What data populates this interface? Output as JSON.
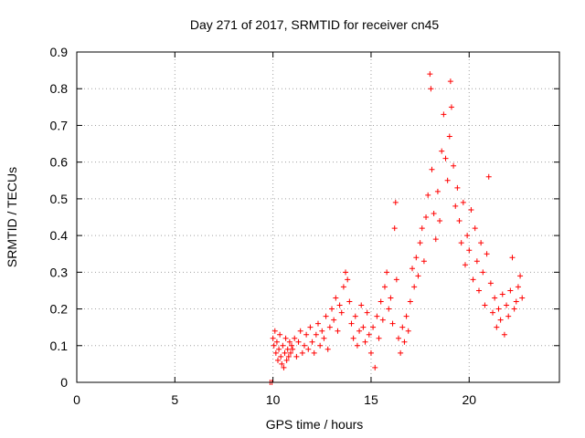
{
  "chart_data": {
    "type": "scatter",
    "title": "Day 271 of 2017, SRMTID for receiver cn45",
    "xlabel": "GPS time / hours",
    "ylabel": "SRMTID / TECUs",
    "xlim": [
      0,
      24.6
    ],
    "ylim": [
      0,
      0.9
    ],
    "x_ticks": [
      0,
      5,
      10,
      15,
      20
    ],
    "x_tick_labels": [
      "0",
      "5",
      "10",
      "15",
      "20"
    ],
    "y_ticks": [
      0,
      0.1,
      0.2,
      0.3,
      0.4,
      0.5,
      0.6,
      0.7,
      0.8,
      0.9
    ],
    "y_tick_labels": [
      "0",
      "0.1",
      "0.2",
      "0.3",
      "0.4",
      "0.5",
      "0.6",
      "0.7",
      "0.8",
      "0.9"
    ],
    "grid": true,
    "marker": "plus",
    "series": [
      {
        "name": "cn45",
        "color": "#ff0000",
        "points": [
          [
            9.85,
            0.0
          ],
          [
            9.95,
            0.0
          ],
          [
            10.0,
            0.12
          ],
          [
            10.05,
            0.1
          ],
          [
            10.1,
            0.14
          ],
          [
            10.15,
            0.08
          ],
          [
            10.2,
            0.11
          ],
          [
            10.25,
            0.06
          ],
          [
            10.3,
            0.09
          ],
          [
            10.35,
            0.13
          ],
          [
            10.4,
            0.07
          ],
          [
            10.45,
            0.05
          ],
          [
            10.5,
            0.1
          ],
          [
            10.55,
            0.04
          ],
          [
            10.6,
            0.08
          ],
          [
            10.65,
            0.12
          ],
          [
            10.7,
            0.06
          ],
          [
            10.75,
            0.09
          ],
          [
            10.8,
            0.07
          ],
          [
            10.85,
            0.11
          ],
          [
            10.9,
            0.08
          ],
          [
            10.95,
            0.1
          ],
          [
            11.0,
            0.09
          ],
          [
            11.1,
            0.12
          ],
          [
            11.2,
            0.07
          ],
          [
            11.3,
            0.11
          ],
          [
            11.4,
            0.14
          ],
          [
            11.5,
            0.08
          ],
          [
            11.6,
            0.1
          ],
          [
            11.7,
            0.13
          ],
          [
            11.8,
            0.09
          ],
          [
            11.9,
            0.15
          ],
          [
            12.0,
            0.11
          ],
          [
            12.1,
            0.08
          ],
          [
            12.2,
            0.13
          ],
          [
            12.3,
            0.16
          ],
          [
            12.4,
            0.1
          ],
          [
            12.5,
            0.14
          ],
          [
            12.6,
            0.12
          ],
          [
            12.7,
            0.18
          ],
          [
            12.8,
            0.09
          ],
          [
            12.9,
            0.15
          ],
          [
            13.0,
            0.2
          ],
          [
            13.1,
            0.17
          ],
          [
            13.2,
            0.23
          ],
          [
            13.3,
            0.14
          ],
          [
            13.4,
            0.21
          ],
          [
            13.5,
            0.19
          ],
          [
            13.6,
            0.26
          ],
          [
            13.7,
            0.3
          ],
          [
            13.8,
            0.28
          ],
          [
            13.9,
            0.22
          ],
          [
            14.0,
            0.16
          ],
          [
            14.1,
            0.12
          ],
          [
            14.2,
            0.18
          ],
          [
            14.3,
            0.1
          ],
          [
            14.4,
            0.14
          ],
          [
            14.5,
            0.21
          ],
          [
            14.6,
            0.15
          ],
          [
            14.7,
            0.11
          ],
          [
            14.8,
            0.19
          ],
          [
            14.9,
            0.13
          ],
          [
            15.0,
            0.08
          ],
          [
            15.1,
            0.15
          ],
          [
            15.2,
            0.04
          ],
          [
            15.3,
            0.18
          ],
          [
            15.4,
            0.12
          ],
          [
            15.5,
            0.22
          ],
          [
            15.6,
            0.17
          ],
          [
            15.7,
            0.26
          ],
          [
            15.8,
            0.3
          ],
          [
            15.9,
            0.2
          ],
          [
            16.0,
            0.23
          ],
          [
            16.1,
            0.16
          ],
          [
            16.2,
            0.42
          ],
          [
            16.25,
            0.49
          ],
          [
            16.3,
            0.28
          ],
          [
            16.4,
            0.12
          ],
          [
            16.5,
            0.08
          ],
          [
            16.6,
            0.15
          ],
          [
            16.7,
            0.11
          ],
          [
            16.8,
            0.18
          ],
          [
            16.9,
            0.14
          ],
          [
            17.0,
            0.22
          ],
          [
            17.1,
            0.31
          ],
          [
            17.2,
            0.26
          ],
          [
            17.3,
            0.34
          ],
          [
            17.4,
            0.29
          ],
          [
            17.5,
            0.38
          ],
          [
            17.6,
            0.42
          ],
          [
            17.7,
            0.33
          ],
          [
            17.8,
            0.45
          ],
          [
            17.9,
            0.51
          ],
          [
            18.0,
            0.84
          ],
          [
            18.05,
            0.8
          ],
          [
            18.1,
            0.58
          ],
          [
            18.2,
            0.46
          ],
          [
            18.3,
            0.39
          ],
          [
            18.4,
            0.52
          ],
          [
            18.5,
            0.44
          ],
          [
            18.6,
            0.63
          ],
          [
            18.7,
            0.73
          ],
          [
            18.8,
            0.61
          ],
          [
            18.9,
            0.55
          ],
          [
            19.0,
            0.67
          ],
          [
            19.05,
            0.82
          ],
          [
            19.1,
            0.75
          ],
          [
            19.2,
            0.59
          ],
          [
            19.3,
            0.48
          ],
          [
            19.4,
            0.53
          ],
          [
            19.5,
            0.44
          ],
          [
            19.6,
            0.38
          ],
          [
            19.7,
            0.49
          ],
          [
            19.8,
            0.32
          ],
          [
            19.9,
            0.4
          ],
          [
            20.0,
            0.36
          ],
          [
            20.1,
            0.47
          ],
          [
            20.2,
            0.28
          ],
          [
            20.3,
            0.42
          ],
          [
            20.4,
            0.33
          ],
          [
            20.5,
            0.25
          ],
          [
            20.6,
            0.38
          ],
          [
            20.7,
            0.3
          ],
          [
            20.8,
            0.21
          ],
          [
            20.9,
            0.35
          ],
          [
            21.0,
            0.56
          ],
          [
            21.1,
            0.27
          ],
          [
            21.2,
            0.19
          ],
          [
            21.3,
            0.23
          ],
          [
            21.4,
            0.15
          ],
          [
            21.5,
            0.2
          ],
          [
            21.6,
            0.17
          ],
          [
            21.7,
            0.24
          ],
          [
            21.8,
            0.13
          ],
          [
            21.9,
            0.21
          ],
          [
            22.0,
            0.18
          ],
          [
            22.1,
            0.25
          ],
          [
            22.2,
            0.34
          ],
          [
            22.3,
            0.2
          ],
          [
            22.4,
            0.22
          ],
          [
            22.5,
            0.26
          ],
          [
            22.6,
            0.29
          ],
          [
            22.7,
            0.23
          ]
        ]
      }
    ]
  }
}
